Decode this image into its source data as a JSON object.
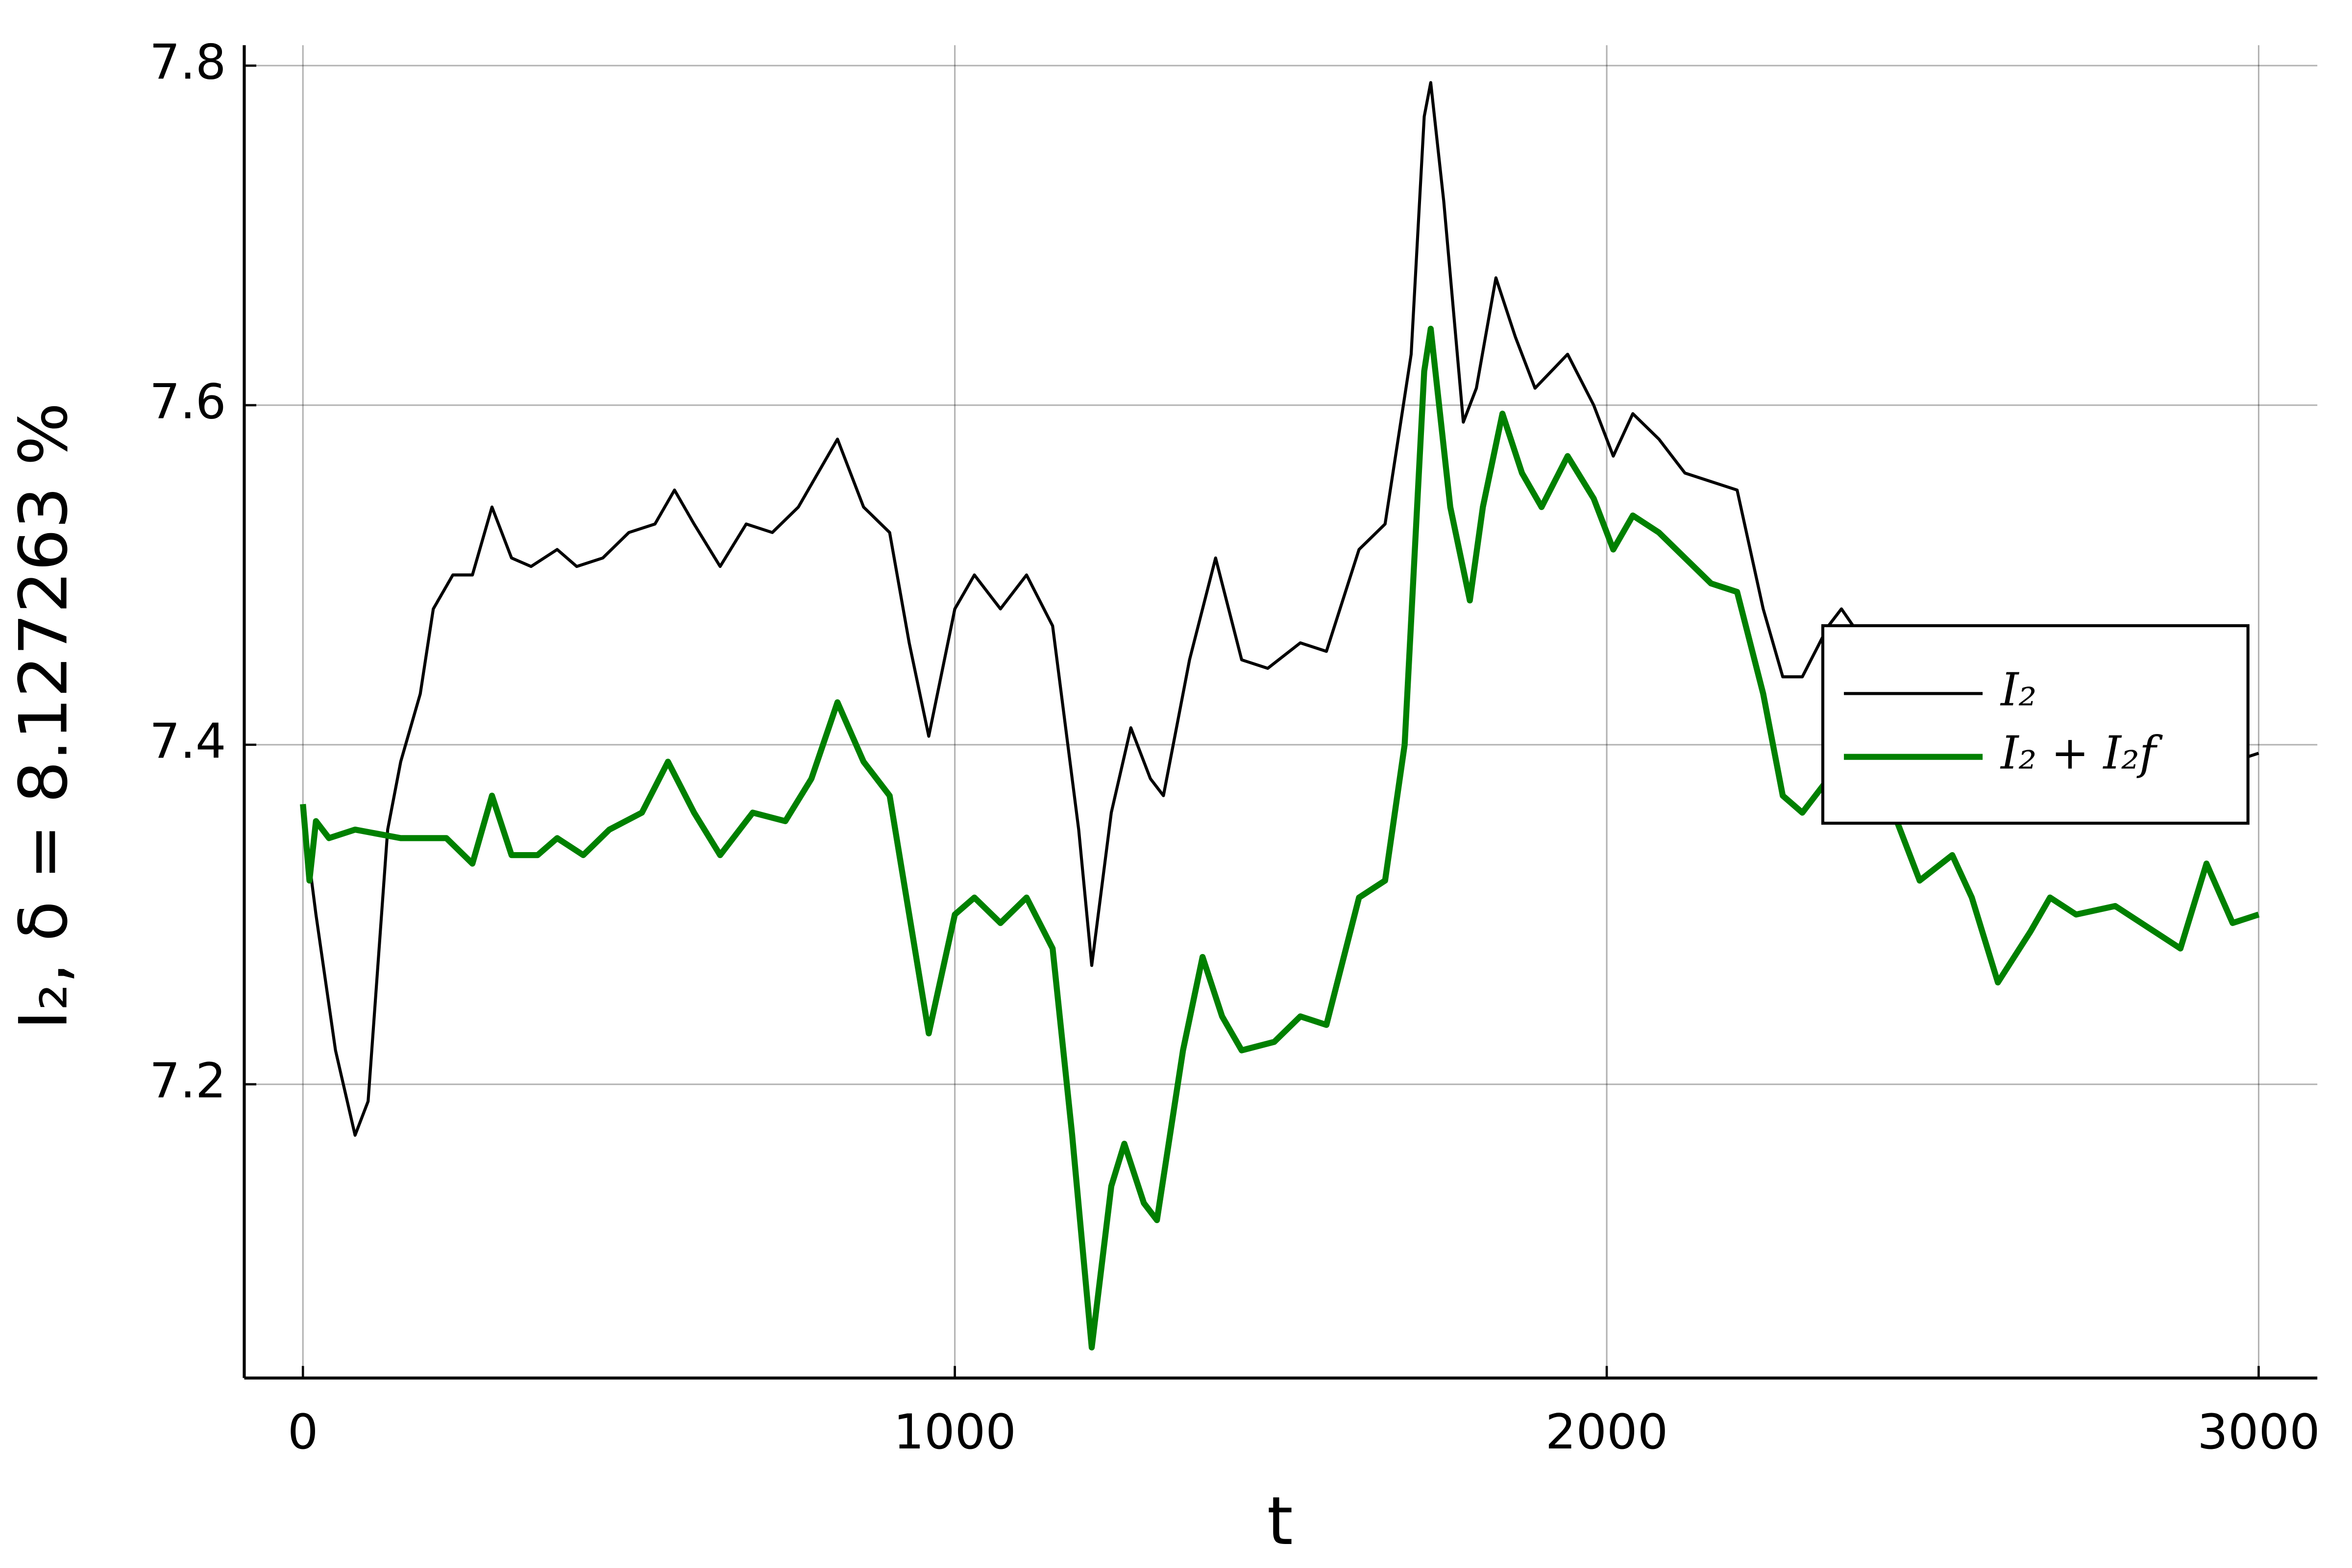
{
  "chart_data": {
    "type": "line",
    "xlabel": "t",
    "ylabel": "I₂, δ = 8.127263 %",
    "xlim": [
      -90,
      3090
    ],
    "ylim": [
      7.027,
      7.812
    ],
    "xticks": [
      0,
      1000,
      2000,
      3000
    ],
    "yticks": [
      7.2,
      7.4,
      7.6,
      7.8
    ],
    "grid": true,
    "legend": "right",
    "series": [
      {
        "name": "I₂",
        "color": "#000000",
        "x": [
          0,
          20,
          50,
          80,
          100,
          130,
          150,
          180,
          200,
          230,
          260,
          290,
          320,
          350,
          390,
          420,
          460,
          500,
          540,
          570,
          600,
          640,
          680,
          720,
          760,
          820,
          860,
          900,
          930,
          960,
          1000,
          1030,
          1070,
          1110,
          1150,
          1190,
          1210,
          1240,
          1270,
          1300,
          1320,
          1360,
          1400,
          1440,
          1480,
          1530,
          1570,
          1620,
          1660,
          1700,
          1720,
          1730,
          1750,
          1780,
          1800,
          1830,
          1860,
          1890,
          1940,
          1980,
          2010,
          2040,
          2080,
          2120,
          2160,
          2200,
          2240,
          2270,
          2300,
          2340,
          2360,
          2450,
          2550,
          2590,
          2700,
          2800,
          2900,
          2960,
          3000
        ],
        "values": [
          7.36,
          7.3,
          7.22,
          7.17,
          7.19,
          7.35,
          7.39,
          7.43,
          7.48,
          7.5,
          7.5,
          7.54,
          7.51,
          7.505,
          7.515,
          7.505,
          7.51,
          7.525,
          7.53,
          7.55,
          7.53,
          7.505,
          7.53,
          7.525,
          7.54,
          7.58,
          7.54,
          7.525,
          7.46,
          7.405,
          7.48,
          7.5,
          7.48,
          7.5,
          7.47,
          7.35,
          7.27,
          7.36,
          7.41,
          7.38,
          7.37,
          7.45,
          7.51,
          7.45,
          7.445,
          7.46,
          7.455,
          7.515,
          7.53,
          7.63,
          7.77,
          7.79,
          7.72,
          7.59,
          7.61,
          7.675,
          7.64,
          7.61,
          7.63,
          7.6,
          7.57,
          7.595,
          7.58,
          7.56,
          7.555,
          7.55,
          7.48,
          7.44,
          7.44,
          7.47,
          7.48,
          7.43,
          7.38,
          7.355,
          7.37,
          7.37,
          7.36,
          7.39,
          7.395
        ]
      },
      {
        "name": "I₂ + I₂f",
        "color": "#008000",
        "x": [
          0,
          10,
          20,
          40,
          80,
          150,
          220,
          260,
          290,
          320,
          360,
          390,
          430,
          470,
          520,
          560,
          600,
          640,
          690,
          740,
          780,
          820,
          860,
          900,
          930,
          960,
          1000,
          1030,
          1070,
          1110,
          1150,
          1180,
          1210,
          1240,
          1260,
          1290,
          1310,
          1350,
          1380,
          1410,
          1440,
          1490,
          1530,
          1570,
          1620,
          1660,
          1690,
          1720,
          1730,
          1760,
          1790,
          1810,
          1840,
          1870,
          1900,
          1940,
          1980,
          2010,
          2040,
          2080,
          2120,
          2160,
          2200,
          2240,
          2270,
          2300,
          2340,
          2400,
          2430,
          2480,
          2530,
          2560,
          2600,
          2650,
          2680,
          2720,
          2780,
          2840,
          2880,
          2920,
          2960,
          3000
        ],
        "values": [
          7.365,
          7.32,
          7.355,
          7.345,
          7.35,
          7.345,
          7.345,
          7.33,
          7.37,
          7.335,
          7.335,
          7.345,
          7.335,
          7.35,
          7.36,
          7.39,
          7.36,
          7.335,
          7.36,
          7.355,
          7.38,
          7.425,
          7.39,
          7.37,
          7.3,
          7.23,
          7.3,
          7.31,
          7.295,
          7.31,
          7.28,
          7.17,
          7.045,
          7.14,
          7.165,
          7.13,
          7.12,
          7.22,
          7.275,
          7.24,
          7.22,
          7.225,
          7.24,
          7.235,
          7.31,
          7.32,
          7.4,
          7.62,
          7.645,
          7.54,
          7.485,
          7.54,
          7.595,
          7.56,
          7.54,
          7.57,
          7.545,
          7.515,
          7.535,
          7.525,
          7.51,
          7.495,
          7.49,
          7.43,
          7.37,
          7.36,
          7.38,
          7.4,
          7.37,
          7.32,
          7.335,
          7.31,
          7.26,
          7.29,
          7.31,
          7.3,
          7.305,
          7.29,
          7.28,
          7.33,
          7.295,
          7.3
        ]
      }
    ]
  }
}
